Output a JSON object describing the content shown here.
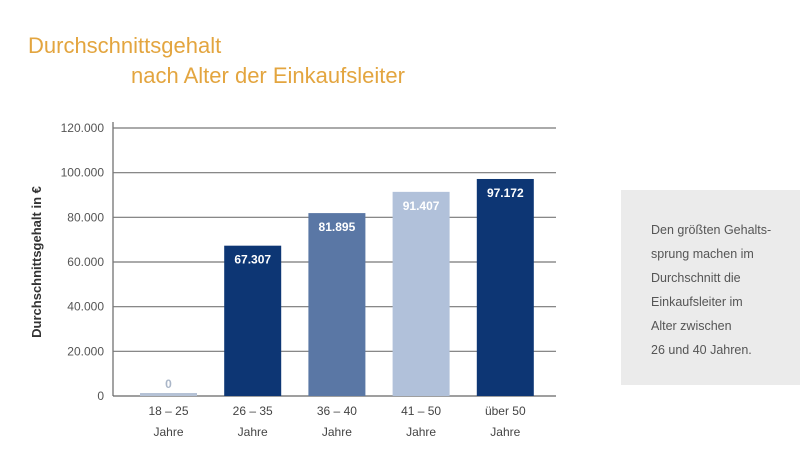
{
  "chart_data": {
    "type": "bar",
    "title": "Durchschnittsgehalt",
    "subtitle": "nach Alter der Einkaufsleiter",
    "xlabel": "",
    "ylabel": "Durchschnittsgehalt  in €",
    "ylim": [
      0,
      120000
    ],
    "yticks": [
      0,
      20000,
      40000,
      60000,
      80000,
      100000,
      120000
    ],
    "ytick_labels": [
      "0",
      "20.000",
      "40.000",
      "60.000",
      "80.000",
      "100.000",
      "120.000"
    ],
    "grid": true,
    "categories": [
      {
        "line1": "18 – 25",
        "line2": "Jahre"
      },
      {
        "line1": "26 – 35",
        "line2": "Jahre"
      },
      {
        "line1": "36 – 40",
        "line2": "Jahre"
      },
      {
        "line1": "41 – 50",
        "line2": "Jahre"
      },
      {
        "line1": "über 50",
        "line2": "Jahre"
      }
    ],
    "values": [
      0,
      67307,
      81895,
      91407,
      97172
    ],
    "data_labels": [
      "0",
      "67.307",
      "81.895",
      "91.407",
      "97.172"
    ],
    "colors": [
      "#b5c2d6",
      "#0d3674",
      "#5a77a5",
      "#b1c1da",
      "#0d3674"
    ]
  },
  "note": {
    "lines": [
      "Den größten Gehalts-",
      "sprung machen im",
      "Durchschnitt die",
      "Einkaufsleiter im",
      "Alter zwischen",
      "26 und 40 Jahren."
    ]
  }
}
